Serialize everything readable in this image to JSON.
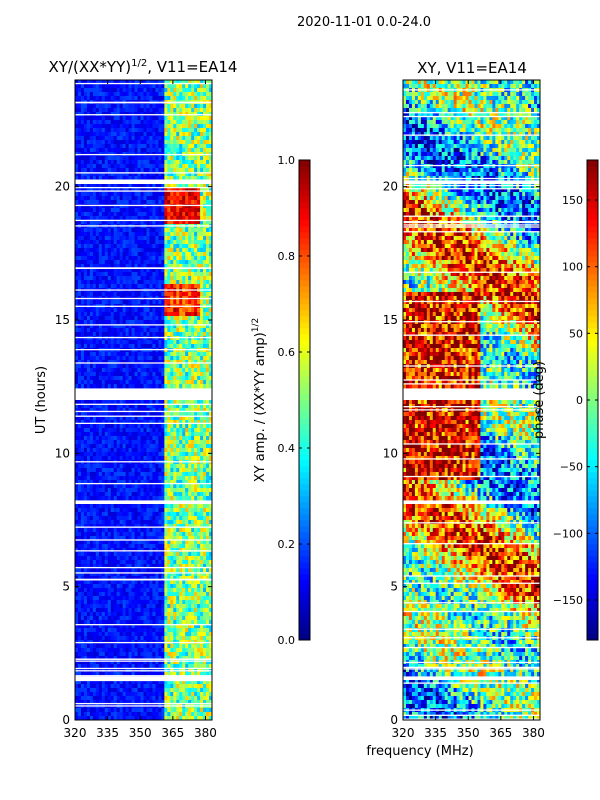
{
  "figure": {
    "suptitle": "2020-11-01 0.0-24.0",
    "xlabel_shared": "frequency (MHz)"
  },
  "chart_data": [
    {
      "type": "heatmap",
      "title_main": "XY/(XX*YY)",
      "title_sup": "1/2",
      "title_tail": ", V11=EA14",
      "ylabel": "UT (hours)",
      "xlim": [
        320,
        383
      ],
      "ylim": [
        0,
        24
      ],
      "xticks": [
        320,
        335,
        350,
        365,
        380
      ],
      "yticks": [
        0,
        5,
        10,
        15,
        20
      ],
      "x_tick_labels": [
        "320",
        "335",
        "350",
        "365",
        "380"
      ],
      "y_tick_labels": [
        "0",
        "5",
        "10",
        "15",
        "20"
      ],
      "colorbar": {
        "label_main": "XY amp. / (XX*YY amp)",
        "label_sup": "1/2",
        "range": [
          0.0,
          1.0
        ],
        "ticks": [
          0.0,
          0.2,
          0.4,
          0.6,
          0.8,
          1.0
        ],
        "tick_labels": [
          "0.0",
          "0.2",
          "0.4",
          "0.6",
          "0.8",
          "1.0"
        ]
      }
    },
    {
      "type": "heatmap",
      "title": "XY, V11=EA14",
      "ylabel": "",
      "xlim": [
        320,
        383
      ],
      "ylim": [
        0,
        24
      ],
      "xticks": [
        320,
        335,
        350,
        365,
        380
      ],
      "yticks": [
        0,
        5,
        10,
        15,
        20
      ],
      "x_tick_labels": [
        "320",
        "335",
        "350",
        "365",
        "380"
      ],
      "y_tick_labels": [
        "0",
        "5",
        "10",
        "15",
        "20"
      ],
      "colorbar": {
        "label": "phase (deg)",
        "range": [
          -180,
          180
        ],
        "ticks": [
          -150,
          -100,
          -50,
          0,
          50,
          100,
          150
        ],
        "tick_labels": [
          "−150",
          "−100",
          "−50",
          "0",
          "50",
          "100",
          "150"
        ]
      }
    }
  ],
  "colormap": [
    "#000080",
    "#0000ff",
    "#0080ff",
    "#00ffff",
    "#80ff80",
    "#ffff00",
    "#ff8000",
    "#ff0000",
    "#800000"
  ],
  "gap_bands_hours": [
    [
      1.45,
      1.65
    ],
    [
      8.05,
      8.25
    ],
    [
      11.95,
      12.45
    ],
    [
      20.05,
      20.25
    ]
  ]
}
